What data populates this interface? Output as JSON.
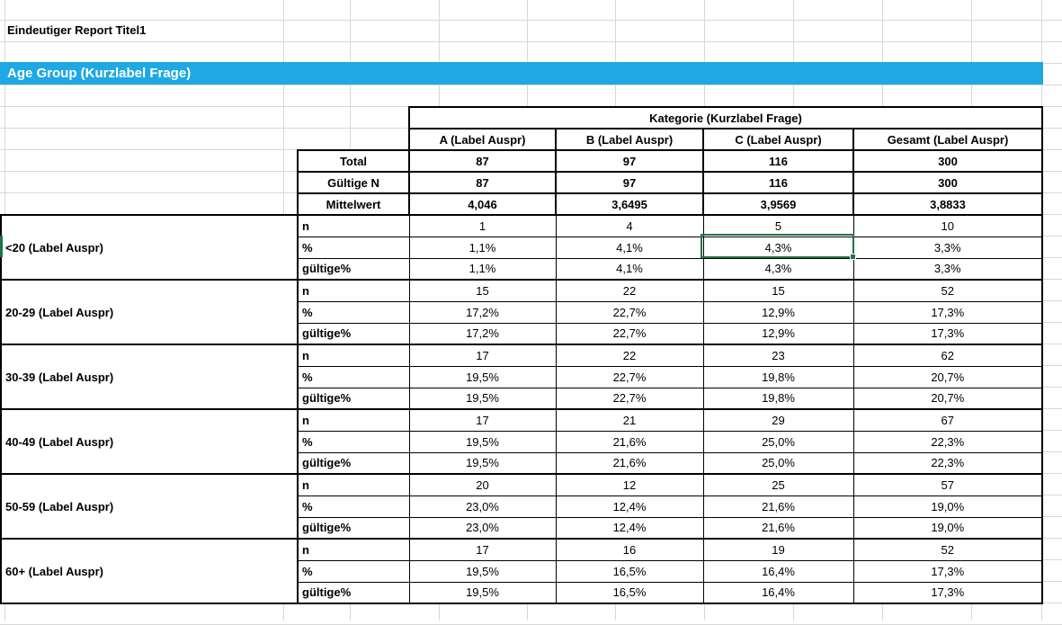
{
  "sheet": {
    "title": "Eindeutiger Report Titel1",
    "banner": {
      "label": "Age Group (Kurzlabel Frage)",
      "bg_color": "#1fa8e2",
      "text_color": "#ffffff"
    }
  },
  "table": {
    "kategorie_header": "Kategorie (Kurzlabel Frage)",
    "columns": [
      "A (Label Auspr)",
      "B (Label Auspr)",
      "C (Label Auspr)",
      "Gesamt (Label Auspr)"
    ],
    "summary_rows": [
      {
        "label": "Total",
        "values": [
          "87",
          "97",
          "116",
          "300"
        ]
      },
      {
        "label": "Gültige N",
        "values": [
          "87",
          "97",
          "116",
          "300"
        ]
      },
      {
        "label": "Mittelwert",
        "values": [
          "4,046",
          "3,6495",
          "3,9569",
          "3,8833"
        ]
      }
    ],
    "groups": [
      {
        "label": "<20 (Label Auspr)",
        "stats": [
          {
            "label": "n",
            "values": [
              "1",
              "4",
              "5",
              "10"
            ]
          },
          {
            "label": "%",
            "values": [
              "1,1%",
              "4,1%",
              "4,3%",
              "3,3%"
            ]
          },
          {
            "label": "gültige%",
            "values": [
              "1,1%",
              "4,1%",
              "4,3%",
              "3,3%"
            ]
          }
        ]
      },
      {
        "label": "20-29 (Label Auspr)",
        "stats": [
          {
            "label": "n",
            "values": [
              "15",
              "22",
              "15",
              "52"
            ]
          },
          {
            "label": "%",
            "values": [
              "17,2%",
              "22,7%",
              "12,9%",
              "17,3%"
            ]
          },
          {
            "label": "gültige%",
            "values": [
              "17,2%",
              "22,7%",
              "12,9%",
              "17,3%"
            ]
          }
        ]
      },
      {
        "label": "30-39 (Label Auspr)",
        "stats": [
          {
            "label": "n",
            "values": [
              "17",
              "22",
              "23",
              "62"
            ]
          },
          {
            "label": "%",
            "values": [
              "19,5%",
              "22,7%",
              "19,8%",
              "20,7%"
            ]
          },
          {
            "label": "gültige%",
            "values": [
              "19,5%",
              "22,7%",
              "19,8%",
              "20,7%"
            ]
          }
        ]
      },
      {
        "label": "40-49 (Label Auspr)",
        "stats": [
          {
            "label": "n",
            "values": [
              "17",
              "21",
              "29",
              "67"
            ]
          },
          {
            "label": "%",
            "values": [
              "19,5%",
              "21,6%",
              "25,0%",
              "22,3%"
            ]
          },
          {
            "label": "gültige%",
            "values": [
              "19,5%",
              "21,6%",
              "25,0%",
              "22,3%"
            ]
          }
        ]
      },
      {
        "label": "50-59 (Label Auspr)",
        "stats": [
          {
            "label": "n",
            "values": [
              "20",
              "12",
              "25",
              "57"
            ]
          },
          {
            "label": "%",
            "values": [
              "23,0%",
              "12,4%",
              "21,6%",
              "19,0%"
            ]
          },
          {
            "label": "gültige%",
            "values": [
              "23,0%",
              "12,4%",
              "21,6%",
              "19,0%"
            ]
          }
        ]
      },
      {
        "label": "60+ (Label Auspr)",
        "stats": [
          {
            "label": "n",
            "values": [
              "17",
              "16",
              "19",
              "52"
            ]
          },
          {
            "label": "%",
            "values": [
              "19,5%",
              "16,5%",
              "16,4%",
              "17,3%"
            ]
          },
          {
            "label": "gültige%",
            "values": [
              "19,5%",
              "16,5%",
              "16,4%",
              "17,3%"
            ]
          }
        ]
      }
    ]
  },
  "selection": {
    "group": "<20 (Label Auspr)",
    "stat": "%",
    "column": "C (Label Auspr)",
    "value": "4,3%",
    "border_color": "#217346"
  }
}
